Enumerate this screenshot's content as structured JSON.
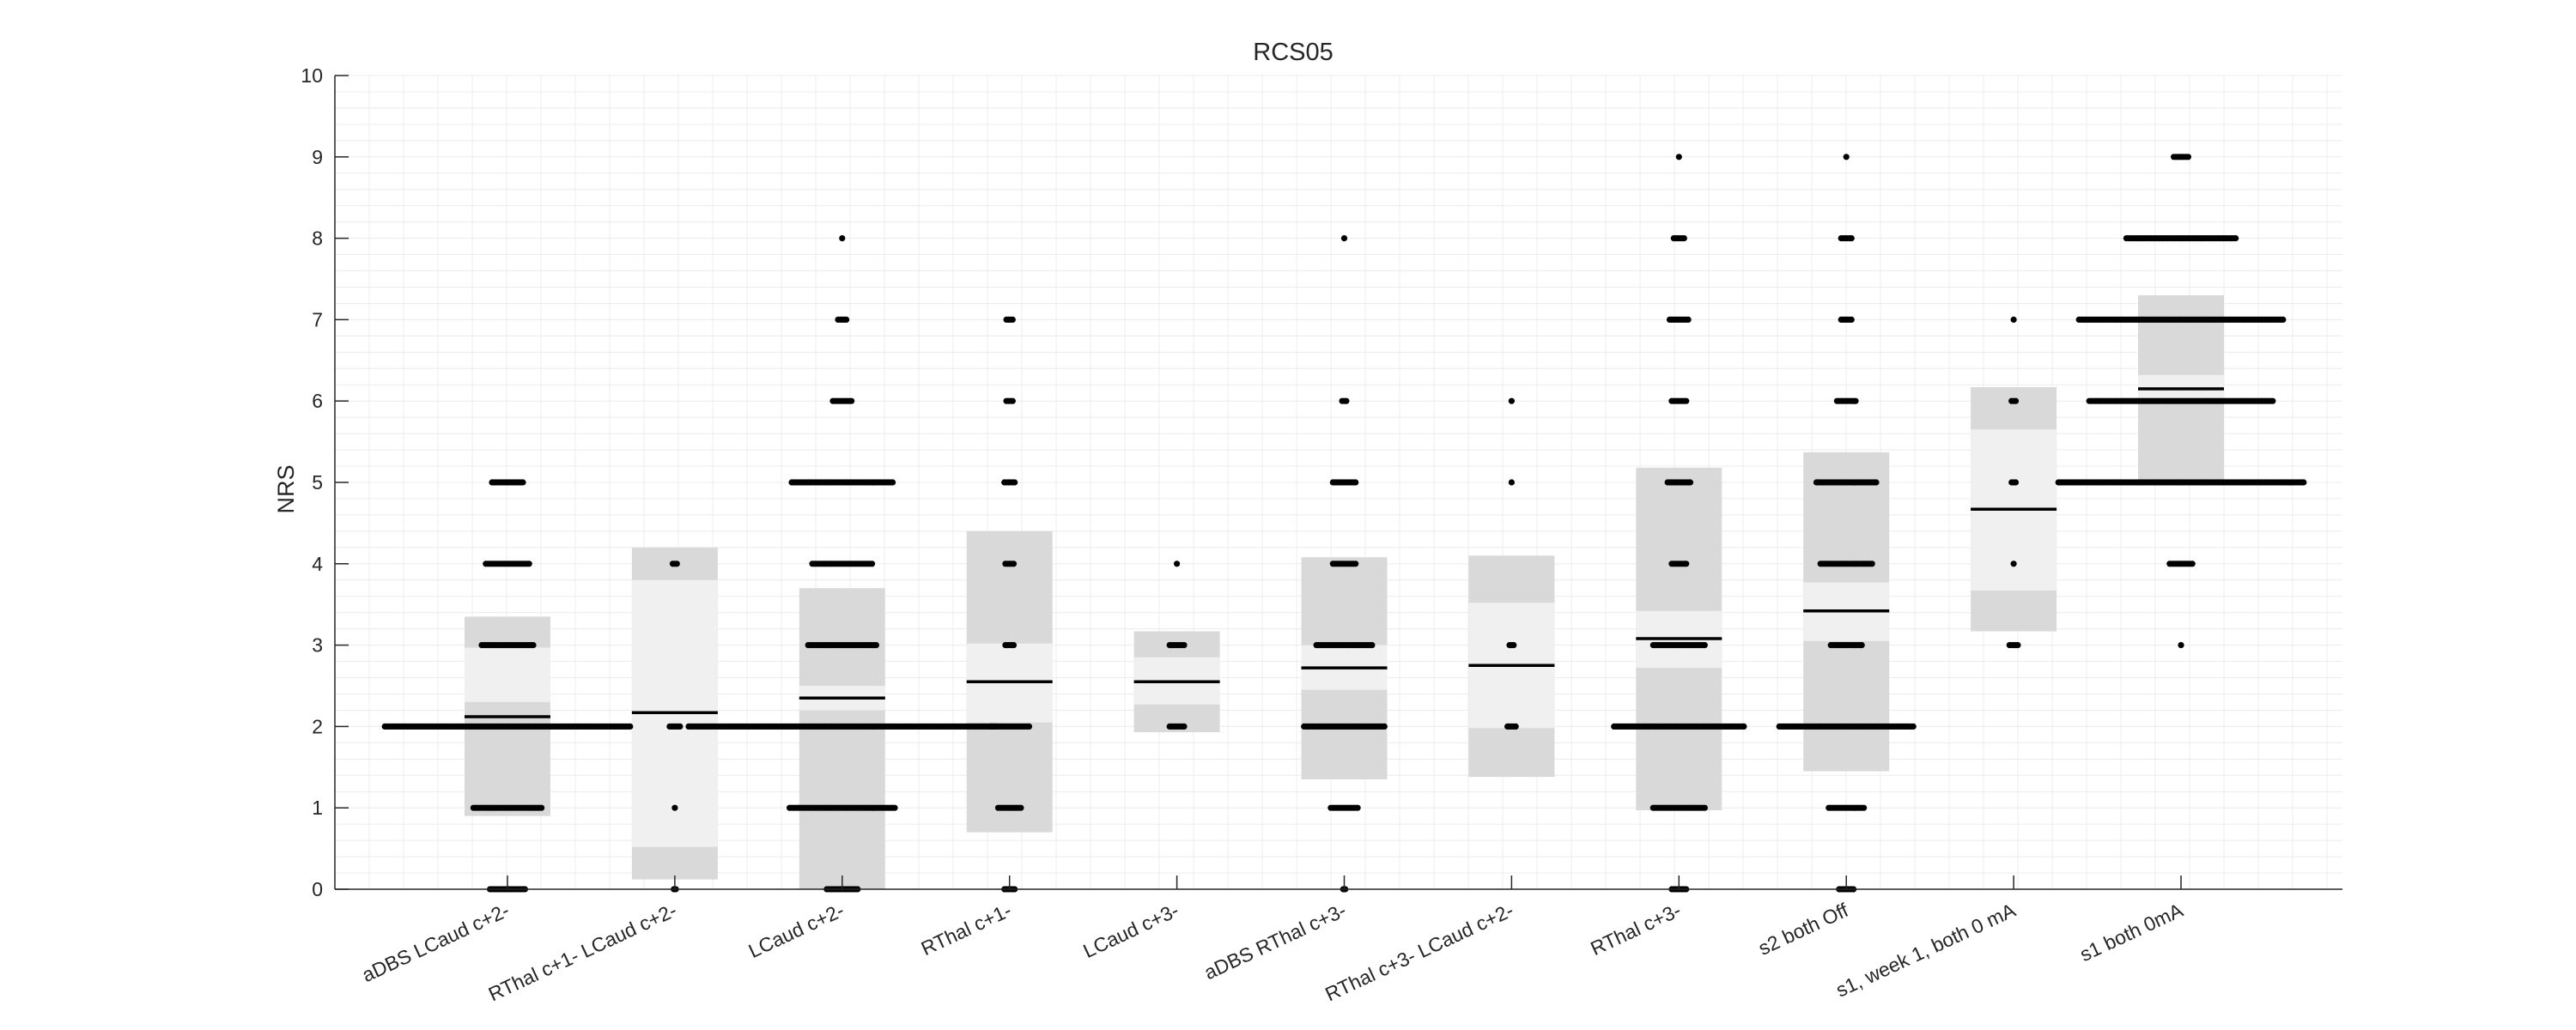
{
  "chart_data": {
    "type": "scatter",
    "title": "RCS05",
    "ylabel": "NRS",
    "xlabel": "",
    "ylim": [
      0,
      10
    ],
    "yticks": [
      "0",
      "1",
      "2",
      "3",
      "4",
      "5",
      "6",
      "7",
      "8",
      "9",
      "10"
    ],
    "grid": "minor",
    "colors": {
      "point": "#000000",
      "box_dark": "#d9d9d9",
      "box_light": "#f0f0f0",
      "axis": "#262626",
      "grid": "#ececec"
    },
    "categories": [
      "aDBS LCaud c+2-",
      "RThal c+1- LCaud c+2-",
      "LCaud c+2-",
      "RThal c+1-",
      "LCaud c+3-",
      "aDBS RThal c+3-",
      "RThal c+3- LCaud c+2-",
      "RThal c+3-",
      "s2 both Off",
      "s1, week 1, both 0 mA",
      "s1 both 0mA"
    ],
    "groups": [
      {
        "mean": 2.12,
        "sd_low": 0.9,
        "sd_high": 3.35,
        "sem_low": 2.3,
        "sem_high": 2.97,
        "points": [
          {
            "y": 0,
            "n": 18
          },
          {
            "y": 1,
            "n": 34
          },
          {
            "y": 2,
            "n": 120
          },
          {
            "y": 3,
            "n": 26
          },
          {
            "y": 4,
            "n": 22
          },
          {
            "y": 5,
            "n": 16
          }
        ]
      },
      {
        "mean": 2.17,
        "sd_low": 0.12,
        "sd_high": 4.2,
        "sem_low": 0.52,
        "sem_high": 3.8,
        "points": [
          {
            "y": 0,
            "n": 2
          },
          {
            "y": 1,
            "n": 1
          },
          {
            "y": 2,
            "n": 6
          },
          {
            "y": 4,
            "n": 3
          }
        ]
      },
      {
        "mean": 2.35,
        "sd_low": 0.0,
        "sd_high": 3.7,
        "sem_low": 2.2,
        "sem_high": 2.5,
        "points": [
          {
            "y": 0,
            "n": 16
          },
          {
            "y": 1,
            "n": 52
          },
          {
            "y": 2,
            "n": 150
          },
          {
            "y": 3,
            "n": 34
          },
          {
            "y": 4,
            "n": 30
          },
          {
            "y": 5,
            "n": 50
          },
          {
            "y": 6,
            "n": 10
          },
          {
            "y": 7,
            "n": 5
          },
          {
            "y": 8,
            "n": 1
          }
        ]
      },
      {
        "mean": 2.55,
        "sd_low": 0.7,
        "sd_high": 4.4,
        "sem_low": 2.05,
        "sem_high": 3.02,
        "points": [
          {
            "y": 0,
            "n": 6
          },
          {
            "y": 1,
            "n": 12
          },
          {
            "y": 2,
            "n": 20
          },
          {
            "y": 3,
            "n": 5
          },
          {
            "y": 4,
            "n": 5
          },
          {
            "y": 5,
            "n": 6
          },
          {
            "y": 6,
            "n": 4
          },
          {
            "y": 7,
            "n": 4
          }
        ]
      },
      {
        "mean": 2.55,
        "sd_low": 1.93,
        "sd_high": 3.17,
        "sem_low": 2.27,
        "sem_high": 2.85,
        "points": [
          {
            "y": 2,
            "n": 8
          },
          {
            "y": 3,
            "n": 8
          },
          {
            "y": 4,
            "n": 1
          }
        ]
      },
      {
        "mean": 2.72,
        "sd_low": 1.35,
        "sd_high": 4.08,
        "sem_low": 2.45,
        "sem_high": 3.0,
        "points": [
          {
            "y": 0,
            "n": 2
          },
          {
            "y": 1,
            "n": 14
          },
          {
            "y": 2,
            "n": 40
          },
          {
            "y": 3,
            "n": 28
          },
          {
            "y": 4,
            "n": 12
          },
          {
            "y": 5,
            "n": 12
          },
          {
            "y": 6,
            "n": 3
          },
          {
            "y": 8,
            "n": 1
          }
        ]
      },
      {
        "mean": 2.75,
        "sd_low": 1.38,
        "sd_high": 4.1,
        "sem_low": 1.98,
        "sem_high": 3.52,
        "points": [
          {
            "y": 2,
            "n": 5
          },
          {
            "y": 3,
            "n": 3
          },
          {
            "y": 5,
            "n": 1
          },
          {
            "y": 6,
            "n": 1
          }
        ]
      },
      {
        "mean": 3.08,
        "sd_low": 0.97,
        "sd_high": 5.18,
        "sem_low": 2.72,
        "sem_high": 3.42,
        "points": [
          {
            "y": 0,
            "n": 8
          },
          {
            "y": 1,
            "n": 26
          },
          {
            "y": 2,
            "n": 64
          },
          {
            "y": 3,
            "n": 26
          },
          {
            "y": 4,
            "n": 8
          },
          {
            "y": 5,
            "n": 12
          },
          {
            "y": 6,
            "n": 8
          },
          {
            "y": 7,
            "n": 10
          },
          {
            "y": 8,
            "n": 6
          },
          {
            "y": 9,
            "n": 1
          }
        ]
      },
      {
        "mean": 3.42,
        "sd_low": 1.45,
        "sd_high": 5.37,
        "sem_low": 3.05,
        "sem_high": 3.77,
        "points": [
          {
            "y": 0,
            "n": 8
          },
          {
            "y": 1,
            "n": 18
          },
          {
            "y": 2,
            "n": 66
          },
          {
            "y": 3,
            "n": 16
          },
          {
            "y": 4,
            "n": 26
          },
          {
            "y": 5,
            "n": 30
          },
          {
            "y": 6,
            "n": 10
          },
          {
            "y": 7,
            "n": 6
          },
          {
            "y": 8,
            "n": 6
          },
          {
            "y": 9,
            "n": 1
          }
        ]
      },
      {
        "mean": 4.67,
        "sd_low": 3.17,
        "sd_high": 6.17,
        "sem_low": 3.67,
        "sem_high": 5.65,
        "points": [
          {
            "y": 3,
            "n": 5
          },
          {
            "y": 4,
            "n": 1
          },
          {
            "y": 5,
            "n": 3
          },
          {
            "y": 6,
            "n": 3
          },
          {
            "y": 7,
            "n": 1
          }
        ]
      },
      {
        "mean": 6.15,
        "sd_low": 5.0,
        "sd_high": 7.3,
        "sem_low": 5.97,
        "sem_high": 6.32,
        "points": [
          {
            "y": 3,
            "n": 1
          },
          {
            "y": 4,
            "n": 12
          },
          {
            "y": 5,
            "n": 120
          },
          {
            "y": 6,
            "n": 90
          },
          {
            "y": 7,
            "n": 100
          },
          {
            "y": 8,
            "n": 54
          },
          {
            "y": 9,
            "n": 8
          }
        ]
      }
    ]
  }
}
